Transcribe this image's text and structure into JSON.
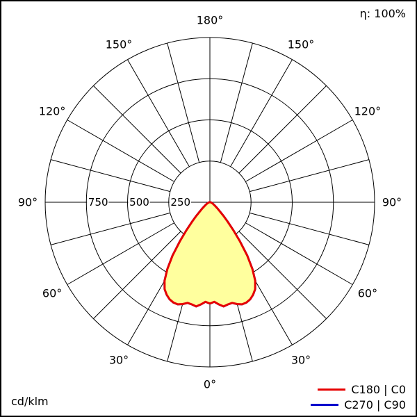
{
  "header": {
    "efficiency_label": "η: 100%"
  },
  "footer": {
    "unit_label": "cd/klm"
  },
  "legend": [
    {
      "label": "C180 | C0",
      "color": "#e60000"
    },
    {
      "label": "C270 | C90",
      "color": "#0000cc"
    }
  ],
  "chart_data": {
    "type": "polar",
    "title": "Luminous intensity distribution curve (polar photometric diagram)",
    "unit": "cd/klm",
    "orientation": "0° at bottom, 180° at top",
    "grid_angle_step_deg": 15,
    "rlim": [
      0,
      1000
    ],
    "radial_ticks": [
      250,
      500,
      750,
      1000
    ],
    "radial_tick_labels": [
      {
        "value": 250,
        "label": "250"
      },
      {
        "value": 500,
        "label": "500"
      },
      {
        "value": 750,
        "label": "750"
      }
    ],
    "angle_labels": [
      {
        "deg": 0,
        "label": "0°"
      },
      {
        "deg": 30,
        "label": "30°"
      },
      {
        "deg": 60,
        "label": "60°"
      },
      {
        "deg": 90,
        "label": "90°"
      },
      {
        "deg": 120,
        "label": "120°"
      },
      {
        "deg": 150,
        "label": "150°"
      },
      {
        "deg": 180,
        "label": "180°"
      }
    ],
    "series": [
      {
        "name": "C180 | C0",
        "color": "#e60000",
        "fill": "#ffff9e",
        "symmetric": true,
        "gamma_deg": [
          0,
          2.5,
          5,
          7.5,
          10,
          12.5,
          15,
          17.5,
          20,
          22.5,
          25,
          27.5,
          30,
          32.5,
          35,
          37.5,
          40,
          42.5,
          45,
          50,
          55,
          60,
          65,
          70,
          75,
          80,
          85,
          90
        ],
        "values_cd_per_klm": [
          615,
          605,
          622,
          638,
          630,
          626,
          640,
          650,
          648,
          638,
          620,
          595,
          550,
          480,
          395,
          300,
          220,
          160,
          115,
          62,
          38,
          26,
          18,
          13,
          9,
          6,
          4,
          3
        ]
      },
      {
        "name": "C270 | C90",
        "color": "#0000cc",
        "fill": "none",
        "symmetric": true,
        "gamma_deg": [
          0,
          2.5,
          5,
          7.5,
          10,
          12.5,
          15,
          17.5,
          20,
          22.5,
          25,
          27.5,
          30,
          32.5,
          35,
          37.5,
          40,
          42.5,
          45,
          50,
          55,
          60,
          65,
          70,
          75,
          80,
          85,
          90
        ],
        "values_cd_per_klm": [
          615,
          605,
          622,
          638,
          630,
          626,
          640,
          650,
          648,
          638,
          620,
          595,
          550,
          480,
          395,
          300,
          220,
          160,
          115,
          62,
          38,
          26,
          18,
          13,
          9,
          6,
          4,
          3
        ]
      }
    ]
  }
}
